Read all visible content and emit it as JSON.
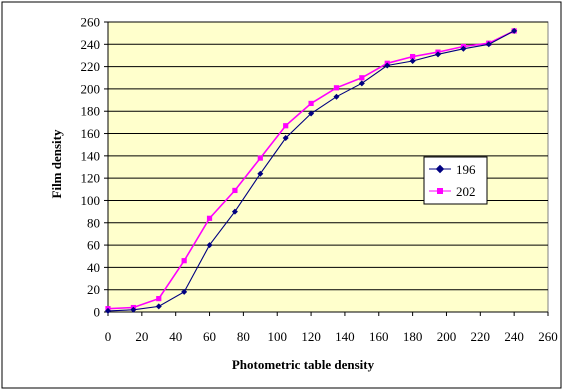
{
  "chart_data": {
    "type": "line",
    "title": "",
    "xlabel": "Photometric table density",
    "ylabel": "Film density",
    "xlim": [
      0,
      260
    ],
    "ylim": [
      0,
      260
    ],
    "x_ticks": [
      "0",
      "20",
      "40",
      "60",
      "80",
      "100",
      "120",
      "140",
      "160",
      "180",
      "200",
      "220",
      "240",
      "260"
    ],
    "y_ticks": [
      "0",
      "20",
      "40",
      "60",
      "80",
      "100",
      "120",
      "140",
      "160",
      "180",
      "200",
      "220",
      "240",
      "260"
    ],
    "grid": "horizontal",
    "legend_position": "right",
    "plot_background": "#ffffcc",
    "x": [
      0,
      15,
      30,
      45,
      60,
      75,
      90,
      105,
      120,
      135,
      150,
      165,
      180,
      195,
      210,
      225,
      240
    ],
    "series": [
      {
        "name": "196",
        "color": "#000080",
        "marker": "diamond",
        "values": [
          1,
          2,
          5,
          18,
          60,
          90,
          124,
          156,
          178,
          193,
          205,
          221,
          225,
          231,
          236,
          240,
          252
        ]
      },
      {
        "name": "202",
        "color": "#ff00ff",
        "marker": "square",
        "values": [
          3,
          4,
          12,
          46,
          84,
          109,
          138,
          167,
          187,
          201,
          210,
          223,
          229,
          233,
          238,
          241,
          252
        ]
      }
    ]
  }
}
